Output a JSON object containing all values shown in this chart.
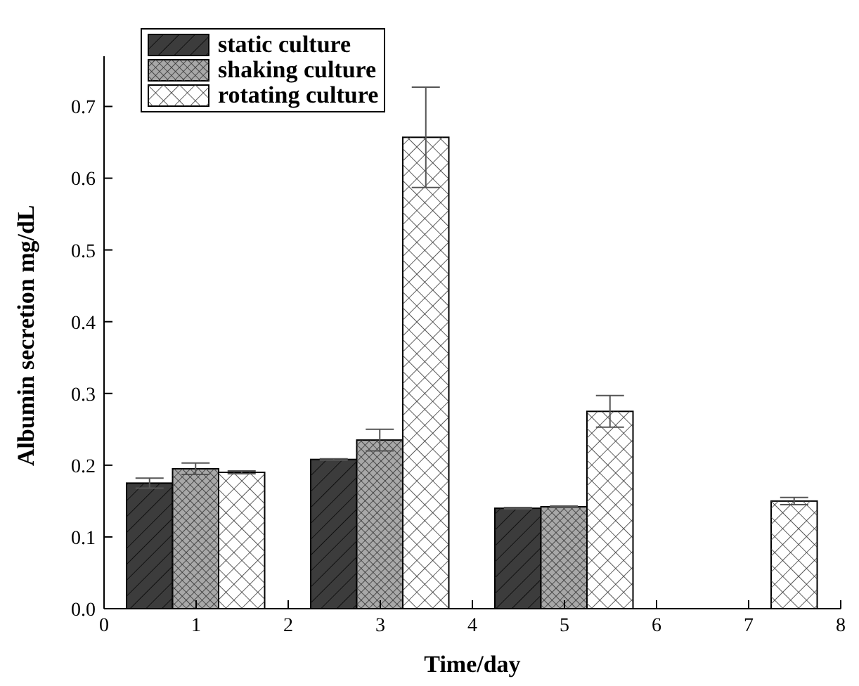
{
  "chart_data": {
    "type": "bar",
    "xlabel": "Time/day",
    "ylabel": "Albumin secretion mg/dL",
    "x": [
      1,
      3,
      5,
      7
    ],
    "series": [
      {
        "name": "static culture",
        "color": "#3c3c3c",
        "values": [
          0.175,
          0.208,
          0.14,
          null
        ],
        "errors": [
          0.007,
          0.001,
          0.001,
          null
        ]
      },
      {
        "name": "shaking culture",
        "color": "#a8a8a8",
        "values": [
          0.195,
          0.235,
          0.142,
          null
        ],
        "errors": [
          0.008,
          0.015,
          0.001,
          null
        ]
      },
      {
        "name": "rotating culture",
        "color": "#ffffff",
        "values": [
          0.19,
          0.657,
          0.275,
          0.15
        ],
        "errors": [
          0.002,
          0.07,
          0.022,
          0.005
        ]
      }
    ],
    "xlim": [
      0,
      8
    ],
    "xticks": [
      0,
      1,
      2,
      3,
      4,
      5,
      6,
      7,
      8
    ],
    "ylim": [
      0,
      0.77
    ],
    "yticks": [
      {
        "value": 0,
        "label": "0.0"
      },
      0.1,
      0.2,
      0.3,
      0.4,
      0.5,
      0.6,
      0.7
    ],
    "grid": false,
    "legend": "top left"
  }
}
